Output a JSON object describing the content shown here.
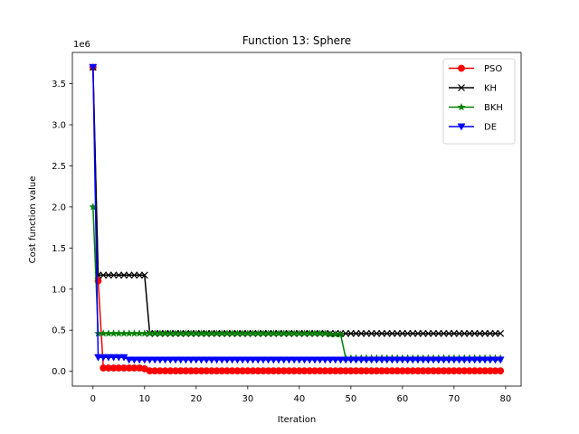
{
  "chart_data": {
    "type": "line",
    "title": "Function 13: Sphere",
    "xlabel": "Iteration",
    "ylabel": "Cost function value",
    "y_offset_label": "1e6",
    "xlim": [
      -4,
      83
    ],
    "ylim": [
      -0.18,
      3.88
    ],
    "x_ticks": [
      0,
      10,
      20,
      30,
      40,
      50,
      60,
      70,
      80
    ],
    "y_ticks": [
      0.0,
      0.5,
      1.0,
      1.5,
      2.0,
      2.5,
      3.0,
      3.5
    ],
    "y_tick_labels": [
      "0.0",
      "0.5",
      "1.0",
      "1.5",
      "2.0",
      "2.5",
      "3.0",
      "3.5"
    ],
    "grid": false,
    "legend_position": "upper right",
    "x": [
      0,
      1,
      2,
      3,
      4,
      5,
      6,
      7,
      8,
      9,
      10,
      11,
      12,
      13,
      14,
      15,
      16,
      17,
      18,
      19,
      20,
      21,
      22,
      23,
      24,
      25,
      26,
      27,
      28,
      29,
      30,
      31,
      32,
      33,
      34,
      35,
      36,
      37,
      38,
      39,
      40,
      41,
      42,
      43,
      44,
      45,
      46,
      47,
      48,
      49,
      50,
      51,
      52,
      53,
      54,
      55,
      56,
      57,
      58,
      59,
      60,
      61,
      62,
      63,
      64,
      65,
      66,
      67,
      68,
      69,
      70,
      71,
      72,
      73,
      74,
      75,
      76,
      77,
      78,
      79
    ],
    "series": [
      {
        "name": "PSO",
        "color": "#ff0000",
        "marker": "circle",
        "values": [
          3.7,
          1.1,
          0.04,
          0.04,
          0.04,
          0.04,
          0.04,
          0.04,
          0.04,
          0.04,
          0.03,
          0.005,
          0.005,
          0.005,
          0.005,
          0.005,
          0.005,
          0.005,
          0.005,
          0.005,
          0.005,
          0.005,
          0.005,
          0.005,
          0.005,
          0.005,
          0.005,
          0.005,
          0.005,
          0.005,
          0.005,
          0.005,
          0.005,
          0.005,
          0.005,
          0.005,
          0.005,
          0.005,
          0.005,
          0.005,
          0.005,
          0.005,
          0.005,
          0.005,
          0.005,
          0.005,
          0.005,
          0.005,
          0.005,
          0.005,
          0.005,
          0.005,
          0.005,
          0.005,
          0.005,
          0.005,
          0.005,
          0.005,
          0.005,
          0.005,
          0.005,
          0.005,
          0.005,
          0.005,
          0.005,
          0.005,
          0.005,
          0.005,
          0.005,
          0.005,
          0.005,
          0.005,
          0.005,
          0.005,
          0.005,
          0.005,
          0.005,
          0.005,
          0.005,
          0.005
        ]
      },
      {
        "name": "KH",
        "color": "#000000",
        "marker": "x",
        "values": [
          3.7,
          1.17,
          1.17,
          1.17,
          1.17,
          1.17,
          1.17,
          1.17,
          1.17,
          1.17,
          1.17,
          0.46,
          0.46,
          0.46,
          0.46,
          0.46,
          0.46,
          0.46,
          0.46,
          0.46,
          0.46,
          0.46,
          0.46,
          0.46,
          0.46,
          0.46,
          0.46,
          0.46,
          0.46,
          0.46,
          0.46,
          0.46,
          0.46,
          0.46,
          0.46,
          0.46,
          0.46,
          0.46,
          0.46,
          0.46,
          0.46,
          0.46,
          0.46,
          0.46,
          0.46,
          0.46,
          0.46,
          0.46,
          0.46,
          0.46,
          0.46,
          0.46,
          0.46,
          0.46,
          0.46,
          0.46,
          0.46,
          0.46,
          0.46,
          0.46,
          0.46,
          0.46,
          0.46,
          0.46,
          0.46,
          0.46,
          0.46,
          0.46,
          0.46,
          0.46,
          0.46,
          0.46,
          0.46,
          0.46,
          0.46,
          0.46,
          0.46,
          0.46,
          0.46,
          0.46
        ]
      },
      {
        "name": "BKH",
        "color": "#008000",
        "marker": "star",
        "values": [
          2.0,
          0.46,
          0.46,
          0.46,
          0.46,
          0.46,
          0.46,
          0.46,
          0.46,
          0.46,
          0.46,
          0.46,
          0.46,
          0.46,
          0.46,
          0.46,
          0.46,
          0.46,
          0.46,
          0.46,
          0.46,
          0.46,
          0.46,
          0.46,
          0.46,
          0.46,
          0.46,
          0.46,
          0.46,
          0.46,
          0.46,
          0.46,
          0.46,
          0.46,
          0.46,
          0.46,
          0.46,
          0.46,
          0.46,
          0.46,
          0.46,
          0.46,
          0.46,
          0.46,
          0.46,
          0.46,
          0.45,
          0.45,
          0.45,
          0.16,
          0.16,
          0.16,
          0.16,
          0.16,
          0.16,
          0.16,
          0.16,
          0.16,
          0.16,
          0.16,
          0.16,
          0.16,
          0.16,
          0.16,
          0.16,
          0.16,
          0.16,
          0.16,
          0.16,
          0.16,
          0.16,
          0.16,
          0.16,
          0.16,
          0.16,
          0.16,
          0.16,
          0.16,
          0.16,
          0.16
        ]
      },
      {
        "name": "DE",
        "color": "#0000ff",
        "marker": "triangle-down",
        "values": [
          3.7,
          0.17,
          0.17,
          0.17,
          0.17,
          0.17,
          0.17,
          0.14,
          0.14,
          0.14,
          0.14,
          0.14,
          0.14,
          0.14,
          0.14,
          0.14,
          0.14,
          0.14,
          0.14,
          0.14,
          0.14,
          0.14,
          0.14,
          0.14,
          0.14,
          0.14,
          0.14,
          0.14,
          0.14,
          0.14,
          0.14,
          0.14,
          0.14,
          0.14,
          0.14,
          0.14,
          0.14,
          0.14,
          0.14,
          0.14,
          0.14,
          0.14,
          0.14,
          0.14,
          0.14,
          0.14,
          0.14,
          0.14,
          0.14,
          0.14,
          0.14,
          0.14,
          0.14,
          0.14,
          0.14,
          0.14,
          0.14,
          0.14,
          0.14,
          0.14,
          0.14,
          0.14,
          0.14,
          0.14,
          0.14,
          0.14,
          0.14,
          0.14,
          0.14,
          0.14,
          0.14,
          0.14,
          0.14,
          0.14,
          0.14,
          0.14,
          0.14,
          0.14,
          0.14,
          0.14
        ]
      }
    ]
  }
}
